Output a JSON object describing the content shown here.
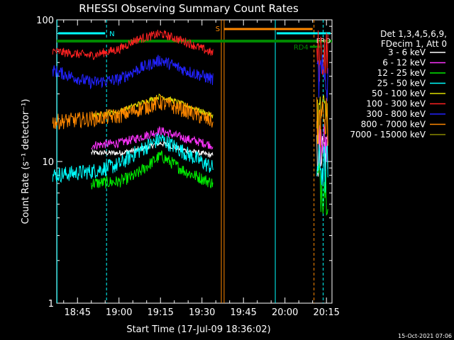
{
  "chart_data": {
    "type": "line",
    "title": "RHESSI Observing Summary Count Rates",
    "xlabel": "Start Time (17-Jul-09 18:36:02)",
    "ylabel": "Count Rate (s⁻¹ detector⁻¹)",
    "yscale": "log",
    "ylim": [
      1,
      100
    ],
    "xlim_min": [
      0,
      100
    ],
    "x_units": "minutes after 18:36:02",
    "xticks": [
      {
        "label": "18:45",
        "value": 9
      },
      {
        "label": "19:00",
        "value": 24
      },
      {
        "label": "19:15",
        "value": 39
      },
      {
        "label": "19:30",
        "value": 54
      },
      {
        "label": "19:45",
        "value": 69
      },
      {
        "label": "20:00",
        "value": 84
      },
      {
        "label": "20:15",
        "value": 99
      }
    ],
    "yticks": [
      {
        "label": "1",
        "value": 1
      },
      {
        "label": "10",
        "value": 10
      },
      {
        "label": "100",
        "value": 100
      }
    ],
    "legend_header": [
      "Det 1,3,4,5,6,9,",
      "FDecim 1, Att 0"
    ],
    "legend_position": "right",
    "series": [
      {
        "name": "3 - 6 keV",
        "color": "#ffffff",
        "values": [
          [
            14,
            11.5
          ],
          [
            24,
            11.5
          ],
          [
            30,
            12
          ],
          [
            39,
            13.5
          ],
          [
            48,
            12
          ],
          [
            58,
            11
          ]
        ]
      },
      {
        "name": "6 - 12 keV",
        "color": "#ff33ff",
        "values": [
          [
            14,
            13
          ],
          [
            24,
            13.5
          ],
          [
            30,
            14.5
          ],
          [
            39,
            16.5
          ],
          [
            48,
            14.5
          ],
          [
            58,
            13
          ]
        ]
      },
      {
        "name": "12 - 25 keV",
        "color": "#00ee00",
        "values": [
          [
            14,
            7
          ],
          [
            24,
            7.2
          ],
          [
            30,
            8
          ],
          [
            39,
            11
          ],
          [
            48,
            8.5
          ],
          [
            58,
            7
          ]
        ]
      },
      {
        "name": "25 - 50 keV",
        "color": "#00ffff",
        "values": [
          [
            0,
            8
          ],
          [
            14,
            8.5
          ],
          [
            24,
            9.5
          ],
          [
            30,
            11.5
          ],
          [
            39,
            14.5
          ],
          [
            48,
            11.5
          ],
          [
            58,
            9
          ]
        ]
      },
      {
        "name": "50 - 100 keV",
        "color": "#dddd00",
        "values": [
          [
            14,
            21
          ],
          [
            24,
            22.5
          ],
          [
            30,
            25
          ],
          [
            39,
            29
          ],
          [
            48,
            25
          ],
          [
            58,
            21
          ]
        ]
      },
      {
        "name": "100 - 300 keV",
        "color": "#ff2222",
        "values": [
          [
            0,
            60
          ],
          [
            14,
            56
          ],
          [
            24,
            62
          ],
          [
            30,
            72
          ],
          [
            39,
            80
          ],
          [
            48,
            70
          ],
          [
            58,
            58
          ]
        ]
      },
      {
        "name": "300 - 800 keV",
        "color": "#2222ff",
        "values": [
          [
            0,
            44
          ],
          [
            14,
            36
          ],
          [
            24,
            38
          ],
          [
            30,
            44
          ],
          [
            39,
            52
          ],
          [
            48,
            44
          ],
          [
            58,
            38
          ]
        ]
      },
      {
        "name": "800 - 7000 keV",
        "color": "#ff8800",
        "values": [
          [
            0,
            19
          ],
          [
            14,
            20
          ],
          [
            24,
            21
          ],
          [
            30,
            23
          ],
          [
            39,
            26
          ],
          [
            48,
            23
          ],
          [
            58,
            19
          ]
        ]
      },
      {
        "name": "7000 - 15000 keV",
        "color": "#888800",
        "values": []
      }
    ],
    "annotations": [
      {
        "text": "N",
        "color": "#00ffff"
      },
      {
        "text": "S",
        "color": "#ff8800"
      },
      {
        "text": "FRO",
        "color": "#ffffff"
      },
      {
        "text": "RD4",
        "color": "#008800"
      }
    ],
    "footer": "15-Oct-2021 07:06"
  }
}
